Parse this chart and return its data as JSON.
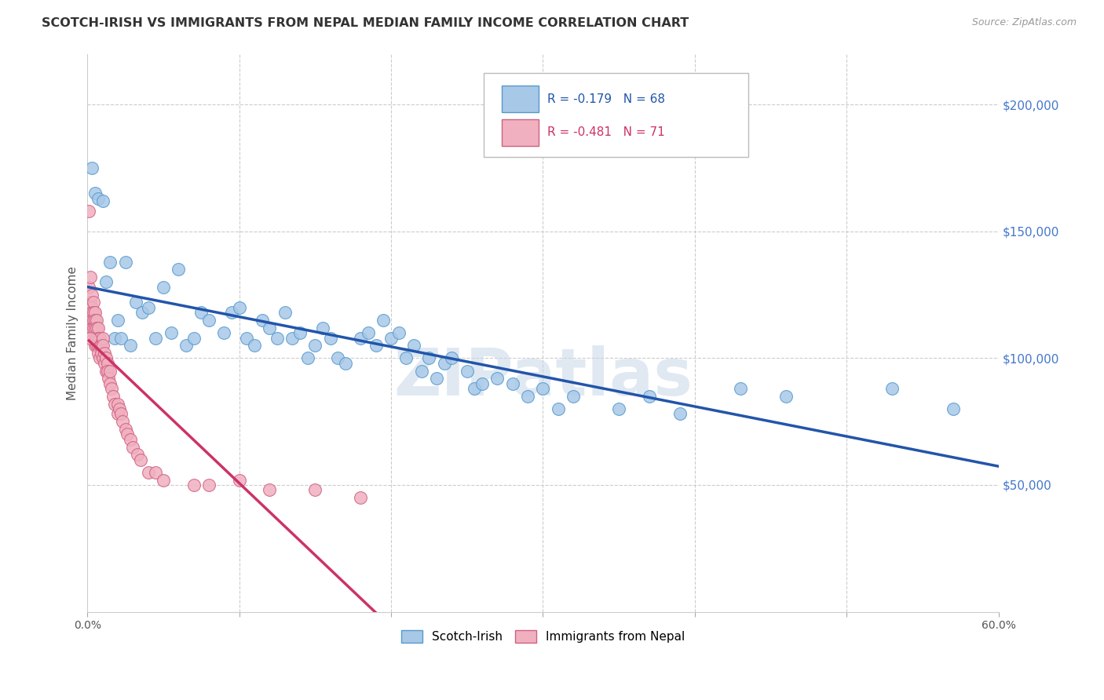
{
  "title": "SCOTCH-IRISH VS IMMIGRANTS FROM NEPAL MEDIAN FAMILY INCOME CORRELATION CHART",
  "source": "Source: ZipAtlas.com",
  "ylabel": "Median Family Income",
  "xlim": [
    0.0,
    0.6
  ],
  "ylim": [
    0,
    220000
  ],
  "xticks": [
    0.0,
    0.1,
    0.2,
    0.3,
    0.4,
    0.5,
    0.6
  ],
  "xtick_labels": [
    "0.0%",
    "",
    "",
    "",
    "",
    "",
    "60.0%"
  ],
  "yticks_right": [
    50000,
    100000,
    150000,
    200000
  ],
  "ytick_labels_right": [
    "$50,000",
    "$100,000",
    "$150,000",
    "$200,000"
  ],
  "bg_color": "#ffffff",
  "grid_color": "#cccccc",
  "watermark": "ZIPatlas",
  "blue_color": "#a8c8e8",
  "blue_edge": "#5599cc",
  "blue_line": "#2255aa",
  "pink_color": "#f0b0c0",
  "pink_edge": "#d06080",
  "pink_line": "#cc3366",
  "series_blue": {
    "name": "Scotch-Irish",
    "R": -0.179,
    "N": 68,
    "x": [
      0.003,
      0.005,
      0.007,
      0.01,
      0.012,
      0.015,
      0.018,
      0.02,
      0.022,
      0.025,
      0.028,
      0.032,
      0.036,
      0.04,
      0.045,
      0.05,
      0.055,
      0.06,
      0.065,
      0.07,
      0.075,
      0.08,
      0.09,
      0.095,
      0.1,
      0.105,
      0.11,
      0.115,
      0.12,
      0.125,
      0.13,
      0.135,
      0.14,
      0.145,
      0.15,
      0.155,
      0.16,
      0.165,
      0.17,
      0.18,
      0.185,
      0.19,
      0.195,
      0.2,
      0.205,
      0.21,
      0.215,
      0.22,
      0.225,
      0.23,
      0.235,
      0.24,
      0.25,
      0.255,
      0.26,
      0.27,
      0.28,
      0.29,
      0.3,
      0.31,
      0.32,
      0.35,
      0.37,
      0.39,
      0.43,
      0.46,
      0.53,
      0.57
    ],
    "y": [
      175000,
      165000,
      163000,
      162000,
      130000,
      138000,
      108000,
      115000,
      108000,
      138000,
      105000,
      122000,
      118000,
      120000,
      108000,
      128000,
      110000,
      135000,
      105000,
      108000,
      118000,
      115000,
      110000,
      118000,
      120000,
      108000,
      105000,
      115000,
      112000,
      108000,
      118000,
      108000,
      110000,
      100000,
      105000,
      112000,
      108000,
      100000,
      98000,
      108000,
      110000,
      105000,
      115000,
      108000,
      110000,
      100000,
      105000,
      95000,
      100000,
      92000,
      98000,
      100000,
      95000,
      88000,
      90000,
      92000,
      90000,
      85000,
      88000,
      80000,
      85000,
      80000,
      85000,
      78000,
      88000,
      85000,
      88000,
      80000
    ]
  },
  "series_pink": {
    "name": "Immigrants from Nepal",
    "R": -0.481,
    "N": 71,
    "x": [
      0.001,
      0.001,
      0.001,
      0.002,
      0.002,
      0.002,
      0.002,
      0.003,
      0.003,
      0.003,
      0.003,
      0.003,
      0.004,
      0.004,
      0.004,
      0.004,
      0.004,
      0.005,
      0.005,
      0.005,
      0.005,
      0.005,
      0.006,
      0.006,
      0.006,
      0.006,
      0.007,
      0.007,
      0.007,
      0.007,
      0.008,
      0.008,
      0.008,
      0.009,
      0.009,
      0.01,
      0.01,
      0.01,
      0.011,
      0.011,
      0.012,
      0.012,
      0.013,
      0.013,
      0.014,
      0.015,
      0.015,
      0.016,
      0.017,
      0.018,
      0.02,
      0.02,
      0.021,
      0.022,
      0.023,
      0.025,
      0.026,
      0.028,
      0.03,
      0.033,
      0.035,
      0.04,
      0.045,
      0.05,
      0.07,
      0.08,
      0.1,
      0.12,
      0.15,
      0.18,
      0.002
    ],
    "y": [
      158000,
      128000,
      120000,
      132000,
      122000,
      118000,
      115000,
      125000,
      120000,
      118000,
      115000,
      112000,
      122000,
      118000,
      115000,
      112000,
      108000,
      118000,
      115000,
      112000,
      108000,
      105000,
      115000,
      112000,
      108000,
      105000,
      112000,
      108000,
      105000,
      102000,
      108000,
      105000,
      100000,
      105000,
      102000,
      108000,
      105000,
      100000,
      102000,
      98000,
      100000,
      95000,
      98000,
      95000,
      92000,
      95000,
      90000,
      88000,
      85000,
      82000,
      82000,
      78000,
      80000,
      78000,
      75000,
      72000,
      70000,
      68000,
      65000,
      62000,
      60000,
      55000,
      55000,
      52000,
      50000,
      50000,
      52000,
      48000,
      48000,
      45000,
      108000
    ]
  }
}
